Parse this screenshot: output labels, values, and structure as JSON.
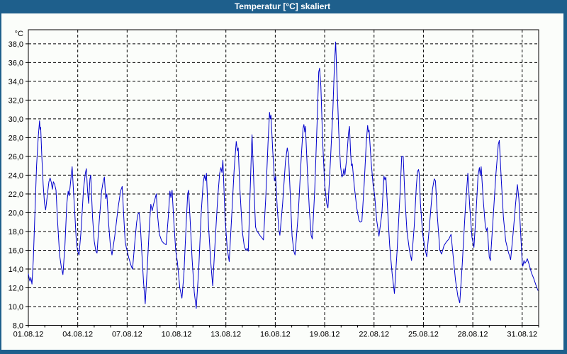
{
  "window": {
    "title": "Temperatur [°C] skaliert"
  },
  "colors": {
    "titlebar_bg": "#1E5F8C",
    "titlebar_text": "#FFFFFF",
    "window_bg": "#FBFDFA",
    "border": "#1E5F8C",
    "axis": "#000000",
    "grid": "#000000",
    "label": "#000000",
    "line": "#0000CD"
  },
  "chart_data": {
    "type": "line",
    "title": "Temperatur [°C] skaliert",
    "ylabel": "°C",
    "xlabel": "",
    "legend": "none",
    "grid": "dashed",
    "x_unit": "days since 01.08.12 00:00",
    "x_range_days": [
      0,
      31
    ],
    "x_tick_days": [
      0,
      3,
      6,
      9,
      12,
      15,
      18,
      21,
      24,
      27,
      30
    ],
    "x_tick_labels": [
      "01.08.12",
      "04.08.12",
      "07.08.12",
      "10.08.12",
      "13.08.12",
      "16.08.12",
      "19.08.12",
      "22.08.12",
      "25.08.12",
      "28.08.12",
      "31.08.12"
    ],
    "ylim": [
      8,
      39.5
    ],
    "y_ticks": [
      8,
      10,
      12,
      14,
      16,
      18,
      20,
      22,
      24,
      26,
      28,
      30,
      32,
      34,
      36,
      38
    ],
    "y_tick_labels": [
      "8,0",
      "10,0",
      "12,0",
      "14,0",
      "16,0",
      "18,0",
      "20,0",
      "22,0",
      "24,0",
      "26,0",
      "28,0",
      "30,0",
      "32,0",
      "34,0",
      "36,0",
      "38,0"
    ],
    "series": [
      {
        "name": "Temperatur",
        "color": "#0000CD",
        "points": [
          [
            0.0,
            13.5
          ],
          [
            0.05,
            13.0
          ],
          [
            0.1,
            12.7
          ],
          [
            0.15,
            13.1
          ],
          [
            0.22,
            12.4
          ],
          [
            0.3,
            15.0
          ],
          [
            0.4,
            20.0
          ],
          [
            0.5,
            25.0
          ],
          [
            0.6,
            28.0
          ],
          [
            0.68,
            29.8
          ],
          [
            0.71,
            28.9
          ],
          [
            0.75,
            29.1
          ],
          [
            0.82,
            26.0
          ],
          [
            0.9,
            23.0
          ],
          [
            0.98,
            21.0
          ],
          [
            1.05,
            20.3
          ],
          [
            1.15,
            21.8
          ],
          [
            1.25,
            23.3
          ],
          [
            1.32,
            23.7
          ],
          [
            1.4,
            23.2
          ],
          [
            1.46,
            22.5
          ],
          [
            1.52,
            23.3
          ],
          [
            1.6,
            23.0
          ],
          [
            1.68,
            22.4
          ],
          [
            1.78,
            19.0
          ],
          [
            1.9,
            15.5
          ],
          [
            2.0,
            14.2
          ],
          [
            2.1,
            13.4
          ],
          [
            2.22,
            16.5
          ],
          [
            2.34,
            21.0
          ],
          [
            2.42,
            22.3
          ],
          [
            2.48,
            21.8
          ],
          [
            2.58,
            23.5
          ],
          [
            2.66,
            24.9
          ],
          [
            2.75,
            22.0
          ],
          [
            2.82,
            20.0
          ],
          [
            2.92,
            16.8
          ],
          [
            3.0,
            15.9
          ],
          [
            3.08,
            15.5
          ],
          [
            3.2,
            18.0
          ],
          [
            3.35,
            22.5
          ],
          [
            3.46,
            24.2
          ],
          [
            3.52,
            24.7
          ],
          [
            3.6,
            22.3
          ],
          [
            3.66,
            21.0
          ],
          [
            3.74,
            23.6
          ],
          [
            3.79,
            24.0
          ],
          [
            3.9,
            19.5
          ],
          [
            4.0,
            17.0
          ],
          [
            4.1,
            15.9
          ],
          [
            4.17,
            15.7
          ],
          [
            4.3,
            19.0
          ],
          [
            4.45,
            22.3
          ],
          [
            4.55,
            23.4
          ],
          [
            4.62,
            23.8
          ],
          [
            4.7,
            21.5
          ],
          [
            4.77,
            22.0
          ],
          [
            4.87,
            19.0
          ],
          [
            4.98,
            16.5
          ],
          [
            5.08,
            15.5
          ],
          [
            5.25,
            17.5
          ],
          [
            5.45,
            20.5
          ],
          [
            5.6,
            22.3
          ],
          [
            5.7,
            22.8
          ],
          [
            5.8,
            19.5
          ],
          [
            5.88,
            16.9
          ],
          [
            5.95,
            16.3
          ],
          [
            6.1,
            15.2
          ],
          [
            6.25,
            14.3
          ],
          [
            6.33,
            14.0
          ],
          [
            6.45,
            16.5
          ],
          [
            6.58,
            19.0
          ],
          [
            6.67,
            19.9
          ],
          [
            6.73,
            20.0
          ],
          [
            6.8,
            18.8
          ],
          [
            6.9,
            15.5
          ],
          [
            7.0,
            12.5
          ],
          [
            7.1,
            10.3
          ],
          [
            7.22,
            14.0
          ],
          [
            7.35,
            18.5
          ],
          [
            7.44,
            20.9
          ],
          [
            7.52,
            20.2
          ],
          [
            7.62,
            21.0
          ],
          [
            7.7,
            21.5
          ],
          [
            7.77,
            22.0
          ],
          [
            7.86,
            19.5
          ],
          [
            7.96,
            17.7
          ],
          [
            8.1,
            17.0
          ],
          [
            8.25,
            16.7
          ],
          [
            8.37,
            16.6
          ],
          [
            8.5,
            19.5
          ],
          [
            8.6,
            22.3
          ],
          [
            8.66,
            21.6
          ],
          [
            8.73,
            22.4
          ],
          [
            8.84,
            19.0
          ],
          [
            8.95,
            16.0
          ],
          [
            9.05,
            14.8
          ],
          [
            9.2,
            12.0
          ],
          [
            9.33,
            10.9
          ],
          [
            9.45,
            13.5
          ],
          [
            9.58,
            18.5
          ],
          [
            9.68,
            22.0
          ],
          [
            9.73,
            22.4
          ],
          [
            9.82,
            19.5
          ],
          [
            9.95,
            15.0
          ],
          [
            10.08,
            11.5
          ],
          [
            10.2,
            9.8
          ],
          [
            10.35,
            14.0
          ],
          [
            10.5,
            20.0
          ],
          [
            10.62,
            23.2
          ],
          [
            10.7,
            24.0
          ],
          [
            10.76,
            23.4
          ],
          [
            10.82,
            24.2
          ],
          [
            10.95,
            18.5
          ],
          [
            11.08,
            14.8
          ],
          [
            11.2,
            12.2
          ],
          [
            11.35,
            17.0
          ],
          [
            11.5,
            21.5
          ],
          [
            11.62,
            24.2
          ],
          [
            11.7,
            24.8
          ],
          [
            11.76,
            24.3
          ],
          [
            11.82,
            25.6
          ],
          [
            11.95,
            19.5
          ],
          [
            12.08,
            16.2
          ],
          [
            12.2,
            14.8
          ],
          [
            12.35,
            19.5
          ],
          [
            12.5,
            24.5
          ],
          [
            12.63,
            27.6
          ],
          [
            12.7,
            26.6
          ],
          [
            12.75,
            26.9
          ],
          [
            12.85,
            22.5
          ],
          [
            13.0,
            18.0
          ],
          [
            13.12,
            16.4
          ],
          [
            13.22,
            16.0
          ],
          [
            13.3,
            16.2
          ],
          [
            13.36,
            15.9
          ],
          [
            13.45,
            21.0
          ],
          [
            13.54,
            26.0
          ],
          [
            13.59,
            28.3
          ],
          [
            13.7,
            23.0
          ],
          [
            13.8,
            18.5
          ],
          [
            13.87,
            18.1
          ],
          [
            13.95,
            17.9
          ],
          [
            14.1,
            17.5
          ],
          [
            14.2,
            17.3
          ],
          [
            14.28,
            17.1
          ],
          [
            14.42,
            21.5
          ],
          [
            14.56,
            27.5
          ],
          [
            14.65,
            30.7
          ],
          [
            14.7,
            30.0
          ],
          [
            14.74,
            30.4
          ],
          [
            14.85,
            26.5
          ],
          [
            14.95,
            23.4
          ],
          [
            15.02,
            23.9
          ],
          [
            15.12,
            20.5
          ],
          [
            15.22,
            18.2
          ],
          [
            15.28,
            17.6
          ],
          [
            15.45,
            21.0
          ],
          [
            15.62,
            25.5
          ],
          [
            15.73,
            26.9
          ],
          [
            15.8,
            26.2
          ],
          [
            15.92,
            21.5
          ],
          [
            16.02,
            17.5
          ],
          [
            16.13,
            15.9
          ],
          [
            16.2,
            15.5
          ],
          [
            16.4,
            20.0
          ],
          [
            16.58,
            26.0
          ],
          [
            16.69,
            29.0
          ],
          [
            16.74,
            29.4
          ],
          [
            16.79,
            28.6
          ],
          [
            16.83,
            29.2
          ],
          [
            16.95,
            24.5
          ],
          [
            17.08,
            20.0
          ],
          [
            17.18,
            17.6
          ],
          [
            17.25,
            17.2
          ],
          [
            17.4,
            22.5
          ],
          [
            17.55,
            30.0
          ],
          [
            17.64,
            35.0
          ],
          [
            17.69,
            35.4
          ],
          [
            17.77,
            33.5
          ],
          [
            17.88,
            27.5
          ],
          [
            18.0,
            23.0
          ],
          [
            18.12,
            21.0
          ],
          [
            18.2,
            20.5
          ],
          [
            18.35,
            25.5
          ],
          [
            18.5,
            31.0
          ],
          [
            18.6,
            36.0
          ],
          [
            18.67,
            38.2
          ],
          [
            18.76,
            33.5
          ],
          [
            18.86,
            28.5
          ],
          [
            18.96,
            25.0
          ],
          [
            19.05,
            23.8
          ],
          [
            19.12,
            24.1
          ],
          [
            19.17,
            24.7
          ],
          [
            19.23,
            24.0
          ],
          [
            19.35,
            26.0
          ],
          [
            19.45,
            28.5
          ],
          [
            19.51,
            29.2
          ],
          [
            19.58,
            26.2
          ],
          [
            19.63,
            25.0
          ],
          [
            19.68,
            25.2
          ],
          [
            19.8,
            22.8
          ],
          [
            19.95,
            20.5
          ],
          [
            20.08,
            19.2
          ],
          [
            20.16,
            19.0
          ],
          [
            20.26,
            19.1
          ],
          [
            20.4,
            23.0
          ],
          [
            20.53,
            27.5
          ],
          [
            20.61,
            29.3
          ],
          [
            20.66,
            28.6
          ],
          [
            20.7,
            28.8
          ],
          [
            20.82,
            25.5
          ],
          [
            20.95,
            22.8
          ],
          [
            21.03,
            22.0
          ],
          [
            21.16,
            19.2
          ],
          [
            21.3,
            17.5
          ],
          [
            21.48,
            20.0
          ],
          [
            21.6,
            23.9
          ],
          [
            21.66,
            23.5
          ],
          [
            21.72,
            23.8
          ],
          [
            21.82,
            20.5
          ],
          [
            21.95,
            16.5
          ],
          [
            22.1,
            13.5
          ],
          [
            22.24,
            11.4
          ],
          [
            22.4,
            16.0
          ],
          [
            22.58,
            22.0
          ],
          [
            22.68,
            26.0
          ],
          [
            22.77,
            26.0
          ],
          [
            22.88,
            21.5
          ],
          [
            23.0,
            18.0
          ],
          [
            23.15,
            16.0
          ],
          [
            23.28,
            14.9
          ],
          [
            23.44,
            18.5
          ],
          [
            23.57,
            22.8
          ],
          [
            23.64,
            24.4
          ],
          [
            23.7,
            24.6
          ],
          [
            23.74,
            24.2
          ],
          [
            23.82,
            21.0
          ],
          [
            23.95,
            17.8
          ],
          [
            24.08,
            16.3
          ],
          [
            24.2,
            15.3
          ],
          [
            24.36,
            18.5
          ],
          [
            24.55,
            22.5
          ],
          [
            24.66,
            23.6
          ],
          [
            24.73,
            23.4
          ],
          [
            24.85,
            19.5
          ],
          [
            25.0,
            16.0
          ],
          [
            25.1,
            15.6
          ],
          [
            25.25,
            16.5
          ],
          [
            25.4,
            16.9
          ],
          [
            25.55,
            17.2
          ],
          [
            25.68,
            17.7
          ],
          [
            25.8,
            15.5
          ],
          [
            25.95,
            12.8
          ],
          [
            26.1,
            11.0
          ],
          [
            26.21,
            10.4
          ],
          [
            26.36,
            14.5
          ],
          [
            26.55,
            20.5
          ],
          [
            26.7,
            24.2
          ],
          [
            26.82,
            20.5
          ],
          [
            26.95,
            17.4
          ],
          [
            27.07,
            16.3
          ],
          [
            27.2,
            20.0
          ],
          [
            27.32,
            24.0
          ],
          [
            27.4,
            24.8
          ],
          [
            27.45,
            24.0
          ],
          [
            27.51,
            24.9
          ],
          [
            27.63,
            21.5
          ],
          [
            27.76,
            18.6
          ],
          [
            27.83,
            18.1
          ],
          [
            27.88,
            18.4
          ],
          [
            28.0,
            15.3
          ],
          [
            28.07,
            14.9
          ],
          [
            28.22,
            19.0
          ],
          [
            28.4,
            24.0
          ],
          [
            28.55,
            27.3
          ],
          [
            28.61,
            27.7
          ],
          [
            28.73,
            23.5
          ],
          [
            28.86,
            19.5
          ],
          [
            29.0,
            17.0
          ],
          [
            29.16,
            15.8
          ],
          [
            29.3,
            15.0
          ],
          [
            29.46,
            18.0
          ],
          [
            29.6,
            21.0
          ],
          [
            29.71,
            23.0
          ],
          [
            29.8,
            21.5
          ],
          [
            29.9,
            18.0
          ],
          [
            30.0,
            14.7
          ],
          [
            30.04,
            14.3
          ],
          [
            30.11,
            14.9
          ],
          [
            30.17,
            14.6
          ],
          [
            30.24,
            14.8
          ],
          [
            30.31,
            15.1
          ],
          [
            30.42,
            14.5
          ],
          [
            30.56,
            13.6
          ],
          [
            30.7,
            13.0
          ],
          [
            30.83,
            12.3
          ],
          [
            30.96,
            11.7
          ]
        ]
      }
    ]
  }
}
